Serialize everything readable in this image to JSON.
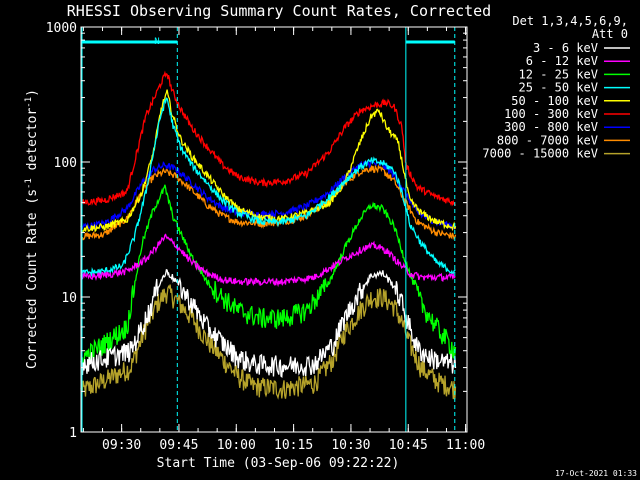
{
  "chart_data": {
    "type": "line",
    "title": "RHESSI Observing Summary Count Rates, Corrected",
    "xlabel": "Start Time (03-Sep-06 09:22:22)",
    "ylabel_main": "Corrected Count Rate (s",
    "ylabel_sup1": "-1",
    "ylabel_mid": " detector",
    "ylabel_sup2": "-1",
    "ylabel_end": ")",
    "yscale": "log",
    "ylim": [
      1,
      1000
    ],
    "xlim_minutes": [
      -3,
      98
    ],
    "x_tick_labels": [
      "09:30",
      "09:45",
      "10:00",
      "10:15",
      "10:30",
      "10:45",
      "11:00"
    ],
    "x_tick_minutes": [
      7.63,
      22.63,
      37.63,
      52.63,
      67.63,
      82.63,
      97.63
    ],
    "y_tick_labels": [
      "1",
      "10",
      "100",
      "1000"
    ],
    "y_tick_values": [
      1,
      10,
      100,
      1000
    ],
    "legend_title_1": "Det 1,3,4,5,6,9,",
    "legend_title_2": "Att 0",
    "legend_placement": "right",
    "footer_timestamp": "17-Oct-2021 01:33",
    "annotation_flag": "N",
    "series": [
      {
        "name": "3 - 6 keV",
        "color": "#ffffff",
        "points": [
          [
            -3,
            3.2
          ],
          [
            3,
            3.5
          ],
          [
            10,
            4
          ],
          [
            15,
            8
          ],
          [
            17,
            12
          ],
          [
            19.5,
            15.5
          ],
          [
            22,
            13
          ],
          [
            26,
            9
          ],
          [
            30,
            6
          ],
          [
            34,
            4.6
          ],
          [
            38,
            3.6
          ],
          [
            42,
            3.2
          ],
          [
            50,
            3.1
          ],
          [
            58,
            3.2
          ],
          [
            63,
            4.5
          ],
          [
            66,
            7
          ],
          [
            70,
            11
          ],
          [
            73,
            14.5
          ],
          [
            76,
            15
          ],
          [
            79,
            12
          ],
          [
            81,
            9
          ],
          [
            83,
            6
          ],
          [
            85,
            4.2
          ],
          [
            88,
            3.6
          ],
          [
            92,
            3.3
          ],
          [
            95,
            3.2
          ]
        ]
      },
      {
        "name": "6 - 12 keV",
        "color": "#ff00ff",
        "points": [
          [
            -3,
            14
          ],
          [
            3,
            14.5
          ],
          [
            9,
            15.5
          ],
          [
            14,
            19
          ],
          [
            17,
            24
          ],
          [
            19,
            28
          ],
          [
            22,
            24
          ],
          [
            26,
            18
          ],
          [
            30,
            15
          ],
          [
            34,
            13.5
          ],
          [
            38,
            13
          ],
          [
            50,
            13
          ],
          [
            58,
            14
          ],
          [
            63,
            17
          ],
          [
            67,
            20
          ],
          [
            71,
            23
          ],
          [
            74,
            24
          ],
          [
            77,
            22
          ],
          [
            80,
            18
          ],
          [
            83,
            15
          ],
          [
            86,
            14
          ],
          [
            95,
            14
          ]
        ]
      },
      {
        "name": "12 - 25 keV",
        "color": "#00ff00",
        "points": [
          [
            -3,
            3.5
          ],
          [
            3,
            4.5
          ],
          [
            9,
            6
          ],
          [
            13,
            25
          ],
          [
            16,
            45
          ],
          [
            19,
            65
          ],
          [
            21,
            40
          ],
          [
            23,
            30
          ],
          [
            26,
            20
          ],
          [
            30,
            13
          ],
          [
            34,
            10
          ],
          [
            38,
            8
          ],
          [
            44,
            7
          ],
          [
            50,
            7
          ],
          [
            56,
            8
          ],
          [
            62,
            13
          ],
          [
            66,
            23
          ],
          [
            70,
            38
          ],
          [
            73,
            48
          ],
          [
            76,
            45
          ],
          [
            79,
            33
          ],
          [
            81,
            22
          ],
          [
            83,
            15
          ],
          [
            86,
            9
          ],
          [
            90,
            6
          ],
          [
            95,
            4
          ]
        ]
      },
      {
        "name": "25 - 50 keV",
        "color": "#00ffff",
        "points": [
          [
            -3,
            15
          ],
          [
            3,
            15.5
          ],
          [
            8,
            17
          ],
          [
            11,
            28
          ],
          [
            14,
            60
          ],
          [
            16,
            120
          ],
          [
            18,
            230
          ],
          [
            19.5,
            300
          ],
          [
            21,
            190
          ],
          [
            23,
            130
          ],
          [
            26,
            95
          ],
          [
            30,
            70
          ],
          [
            34,
            52
          ],
          [
            38,
            42
          ],
          [
            44,
            36
          ],
          [
            50,
            36
          ],
          [
            56,
            40
          ],
          [
            62,
            55
          ],
          [
            66,
            72
          ],
          [
            70,
            92
          ],
          [
            73,
            102
          ],
          [
            76,
            98
          ],
          [
            79,
            86
          ],
          [
            81,
            60
          ],
          [
            83,
            35
          ],
          [
            86,
            25
          ],
          [
            90,
            18
          ],
          [
            95,
            15
          ]
        ]
      },
      {
        "name": "50 - 100 keV",
        "color": "#ffff00",
        "points": [
          [
            -3,
            32
          ],
          [
            3,
            33
          ],
          [
            9,
            37
          ],
          [
            13,
            60
          ],
          [
            16,
            120
          ],
          [
            18,
            250
          ],
          [
            19.5,
            330
          ],
          [
            21,
            220
          ],
          [
            23,
            150
          ],
          [
            26,
            110
          ],
          [
            30,
            80
          ],
          [
            34,
            58
          ],
          [
            38,
            45
          ],
          [
            44,
            39
          ],
          [
            50,
            38
          ],
          [
            56,
            42
          ],
          [
            62,
            50
          ],
          [
            66,
            70
          ],
          [
            70,
            140
          ],
          [
            73,
            220
          ],
          [
            75,
            240
          ],
          [
            77,
            180
          ],
          [
            80,
            140
          ],
          [
            83,
            52
          ],
          [
            86,
            42
          ],
          [
            90,
            36
          ],
          [
            95,
            33
          ]
        ]
      },
      {
        "name": "100 - 300 keV",
        "color": "#ff0000",
        "points": [
          [
            -3,
            50
          ],
          [
            3,
            52
          ],
          [
            9,
            60
          ],
          [
            11,
            100
          ],
          [
            14,
            220
          ],
          [
            16,
            290
          ],
          [
            18,
            390
          ],
          [
            19.5,
            460
          ],
          [
            21,
            330
          ],
          [
            23,
            250
          ],
          [
            26,
            180
          ],
          [
            30,
            130
          ],
          [
            34,
            95
          ],
          [
            38,
            78
          ],
          [
            44,
            70
          ],
          [
            50,
            72
          ],
          [
            56,
            82
          ],
          [
            62,
            120
          ],
          [
            66,
            180
          ],
          [
            70,
            240
          ],
          [
            74,
            265
          ],
          [
            77,
            275
          ],
          [
            79,
            255
          ],
          [
            81,
            180
          ],
          [
            82,
            95
          ],
          [
            85,
            65
          ],
          [
            90,
            55
          ],
          [
            95,
            50
          ]
        ]
      },
      {
        "name": "300 - 800 keV",
        "color": "#0000ff",
        "points": [
          [
            -3,
            33
          ],
          [
            3,
            35
          ],
          [
            9,
            45
          ],
          [
            13,
            70
          ],
          [
            16,
            88
          ],
          [
            19,
            95
          ],
          [
            22,
            88
          ],
          [
            26,
            70
          ],
          [
            30,
            55
          ],
          [
            34,
            46
          ],
          [
            38,
            42
          ],
          [
            44,
            41
          ],
          [
            50,
            42
          ],
          [
            56,
            47
          ],
          [
            62,
            60
          ],
          [
            66,
            78
          ],
          [
            70,
            95
          ],
          [
            73,
            98
          ],
          [
            76,
            95
          ],
          [
            79,
            80
          ],
          [
            82,
            58
          ],
          [
            85,
            42
          ],
          [
            90,
            36
          ],
          [
            95,
            33
          ]
        ]
      },
      {
        "name": "800 - 7000 keV",
        "color": "#ff8c00",
        "points": [
          [
            -3,
            28
          ],
          [
            3,
            29
          ],
          [
            9,
            38
          ],
          [
            13,
            60
          ],
          [
            16,
            78
          ],
          [
            19,
            85
          ],
          [
            22,
            78
          ],
          [
            26,
            62
          ],
          [
            30,
            48
          ],
          [
            34,
            40
          ],
          [
            38,
            36
          ],
          [
            44,
            35
          ],
          [
            50,
            36
          ],
          [
            56,
            40
          ],
          [
            62,
            52
          ],
          [
            66,
            70
          ],
          [
            70,
            85
          ],
          [
            73,
            90
          ],
          [
            76,
            86
          ],
          [
            79,
            72
          ],
          [
            82,
            50
          ],
          [
            85,
            36
          ],
          [
            90,
            30
          ],
          [
            95,
            28
          ]
        ]
      },
      {
        "name": "7000 - 15000 keV",
        "color": "#b5a22a",
        "points": [
          [
            -3,
            2
          ],
          [
            3,
            2.4
          ],
          [
            10,
            3
          ],
          [
            14,
            6
          ],
          [
            17,
            9
          ],
          [
            19.5,
            11
          ],
          [
            22,
            9.5
          ],
          [
            26,
            7
          ],
          [
            30,
            4.8
          ],
          [
            34,
            3.5
          ],
          [
            38,
            2.6
          ],
          [
            42,
            2.2
          ],
          [
            50,
            2.1
          ],
          [
            58,
            2.3
          ],
          [
            63,
            3.5
          ],
          [
            66,
            5.5
          ],
          [
            70,
            8
          ],
          [
            73,
            10
          ],
          [
            76,
            10
          ],
          [
            79,
            8.5
          ],
          [
            81,
            6.5
          ],
          [
            83,
            4.5
          ],
          [
            86,
            3
          ],
          [
            90,
            2.4
          ],
          [
            95,
            2.1
          ]
        ]
      }
    ],
    "vlines_minutes_dashed": [
      22.2,
      94.8
    ],
    "vlines_minutes_solid": [
      82.0
    ],
    "saa_bars_minutes": [
      [
        -3,
        22.2
      ],
      [
        82.0,
        94.8
      ]
    ]
  }
}
